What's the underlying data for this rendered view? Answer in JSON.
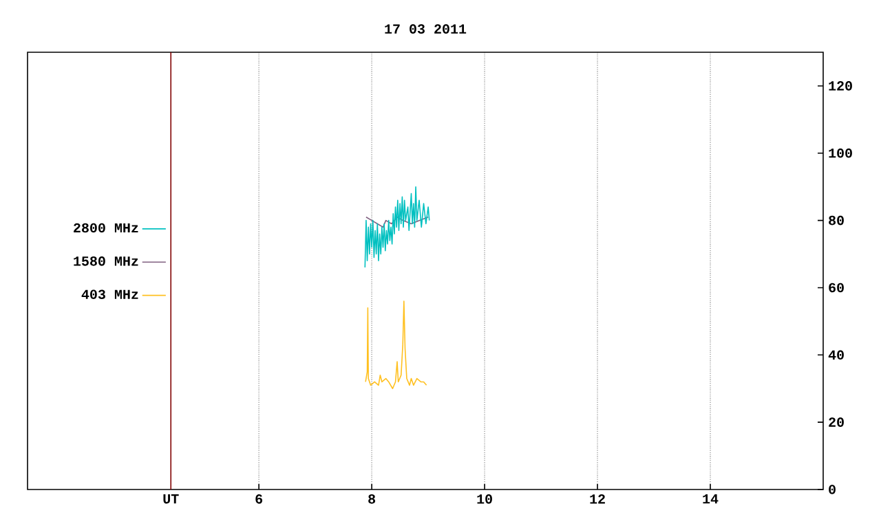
{
  "chart_data": {
    "type": "line",
    "title": "17 03 2011",
    "xlim": [
      1.9,
      16
    ],
    "ylim": [
      0,
      130
    ],
    "xticks": [
      {
        "value": 4.44,
        "label": "UT"
      },
      6,
      8,
      10,
      12,
      14
    ],
    "yticks": [
      0,
      20,
      40,
      60,
      80,
      100,
      120
    ],
    "grid": "x",
    "legend": "left",
    "ref_lines": [
      {
        "axis": "x",
        "value": 4.44,
        "color": "#800000"
      }
    ],
    "series": [
      {
        "name": "2800 MHz",
        "color": "#00c0c0",
        "x": [
          7.88,
          7.9,
          7.92,
          7.94,
          7.96,
          7.98,
          8.0,
          8.02,
          8.04,
          8.06,
          8.08,
          8.1,
          8.12,
          8.14,
          8.16,
          8.18,
          8.2,
          8.22,
          8.24,
          8.26,
          8.28,
          8.3,
          8.32,
          8.34,
          8.36,
          8.38,
          8.4,
          8.42,
          8.44,
          8.46,
          8.48,
          8.5,
          8.52,
          8.54,
          8.56,
          8.58,
          8.6,
          8.64,
          8.66,
          8.7,
          8.72,
          8.74,
          8.76,
          8.78,
          8.8,
          8.84,
          8.88,
          8.92,
          8.96,
          9.0,
          9.02
        ],
        "values": [
          66,
          80,
          68,
          78,
          70,
          79,
          72,
          80,
          69,
          77,
          70,
          79,
          68,
          76,
          70,
          78,
          72,
          79,
          71,
          77,
          73,
          80,
          74,
          78,
          73,
          82,
          76,
          84,
          78,
          86,
          77,
          85,
          79,
          87,
          78,
          86,
          80,
          84,
          77,
          88,
          79,
          85,
          78,
          90,
          80,
          86,
          78,
          85,
          79,
          84,
          80
        ]
      },
      {
        "name": "1580 MHz",
        "color": "#806080",
        "x": [
          7.9,
          8.0,
          8.1,
          8.2,
          8.25,
          8.35,
          8.45,
          8.55,
          8.7,
          8.85,
          9.0
        ],
        "values": [
          81,
          80,
          79,
          78,
          80,
          79,
          81,
          80,
          79,
          80,
          81
        ]
      },
      {
        "name": "403 MHz",
        "color": "#ffc020",
        "x": [
          7.89,
          7.92,
          7.93,
          7.94,
          7.98,
          8.05,
          8.12,
          8.15,
          8.18,
          8.25,
          8.3,
          8.37,
          8.42,
          8.45,
          8.47,
          8.52,
          8.55,
          8.57,
          8.59,
          8.62,
          8.67,
          8.7,
          8.74,
          8.8,
          8.87,
          8.92,
          8.97
        ],
        "values": [
          32,
          35,
          54,
          33,
          31,
          32,
          31,
          34,
          32,
          33,
          32,
          30,
          32,
          38,
          32,
          34,
          43,
          56,
          42,
          33,
          31,
          33,
          31,
          33,
          32,
          32,
          31
        ]
      }
    ]
  }
}
